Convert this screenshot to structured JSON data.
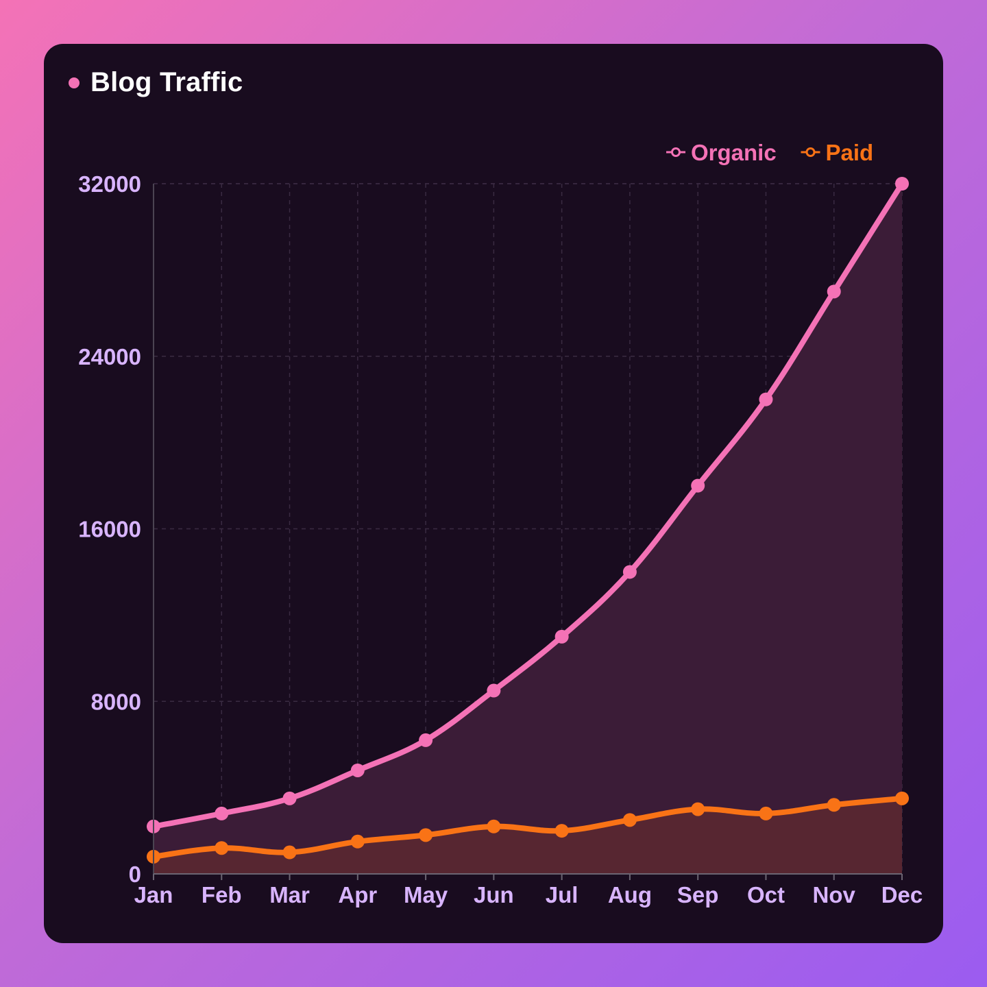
{
  "title": "Blog Traffic",
  "colors": {
    "accent": "#f472b6",
    "organic": "#f472b6",
    "paid": "#f97316",
    "tick_label": "#d8b4fe",
    "card_bg": "#190c1f"
  },
  "chart_data": {
    "type": "area",
    "title": "Blog Traffic",
    "categories": [
      "Jan",
      "Feb",
      "Mar",
      "Apr",
      "May",
      "Jun",
      "Jul",
      "Aug",
      "Sep",
      "Oct",
      "Nov",
      "Dec"
    ],
    "series": [
      {
        "name": "Organic",
        "color": "#f472b6",
        "values": [
          2200,
          2800,
          3500,
          4800,
          6200,
          8500,
          11000,
          14000,
          18000,
          22000,
          27000,
          32000
        ]
      },
      {
        "name": "Paid",
        "color": "#f97316",
        "values": [
          800,
          1200,
          1000,
          1500,
          1800,
          2200,
          2000,
          2500,
          3000,
          2800,
          3200,
          3500
        ]
      }
    ],
    "y_ticks": [
      0,
      8000,
      16000,
      24000,
      32000
    ],
    "ylim": [
      0,
      32000
    ],
    "xlabel": "",
    "ylabel": "",
    "grid": true,
    "legend_position": "top-right"
  }
}
